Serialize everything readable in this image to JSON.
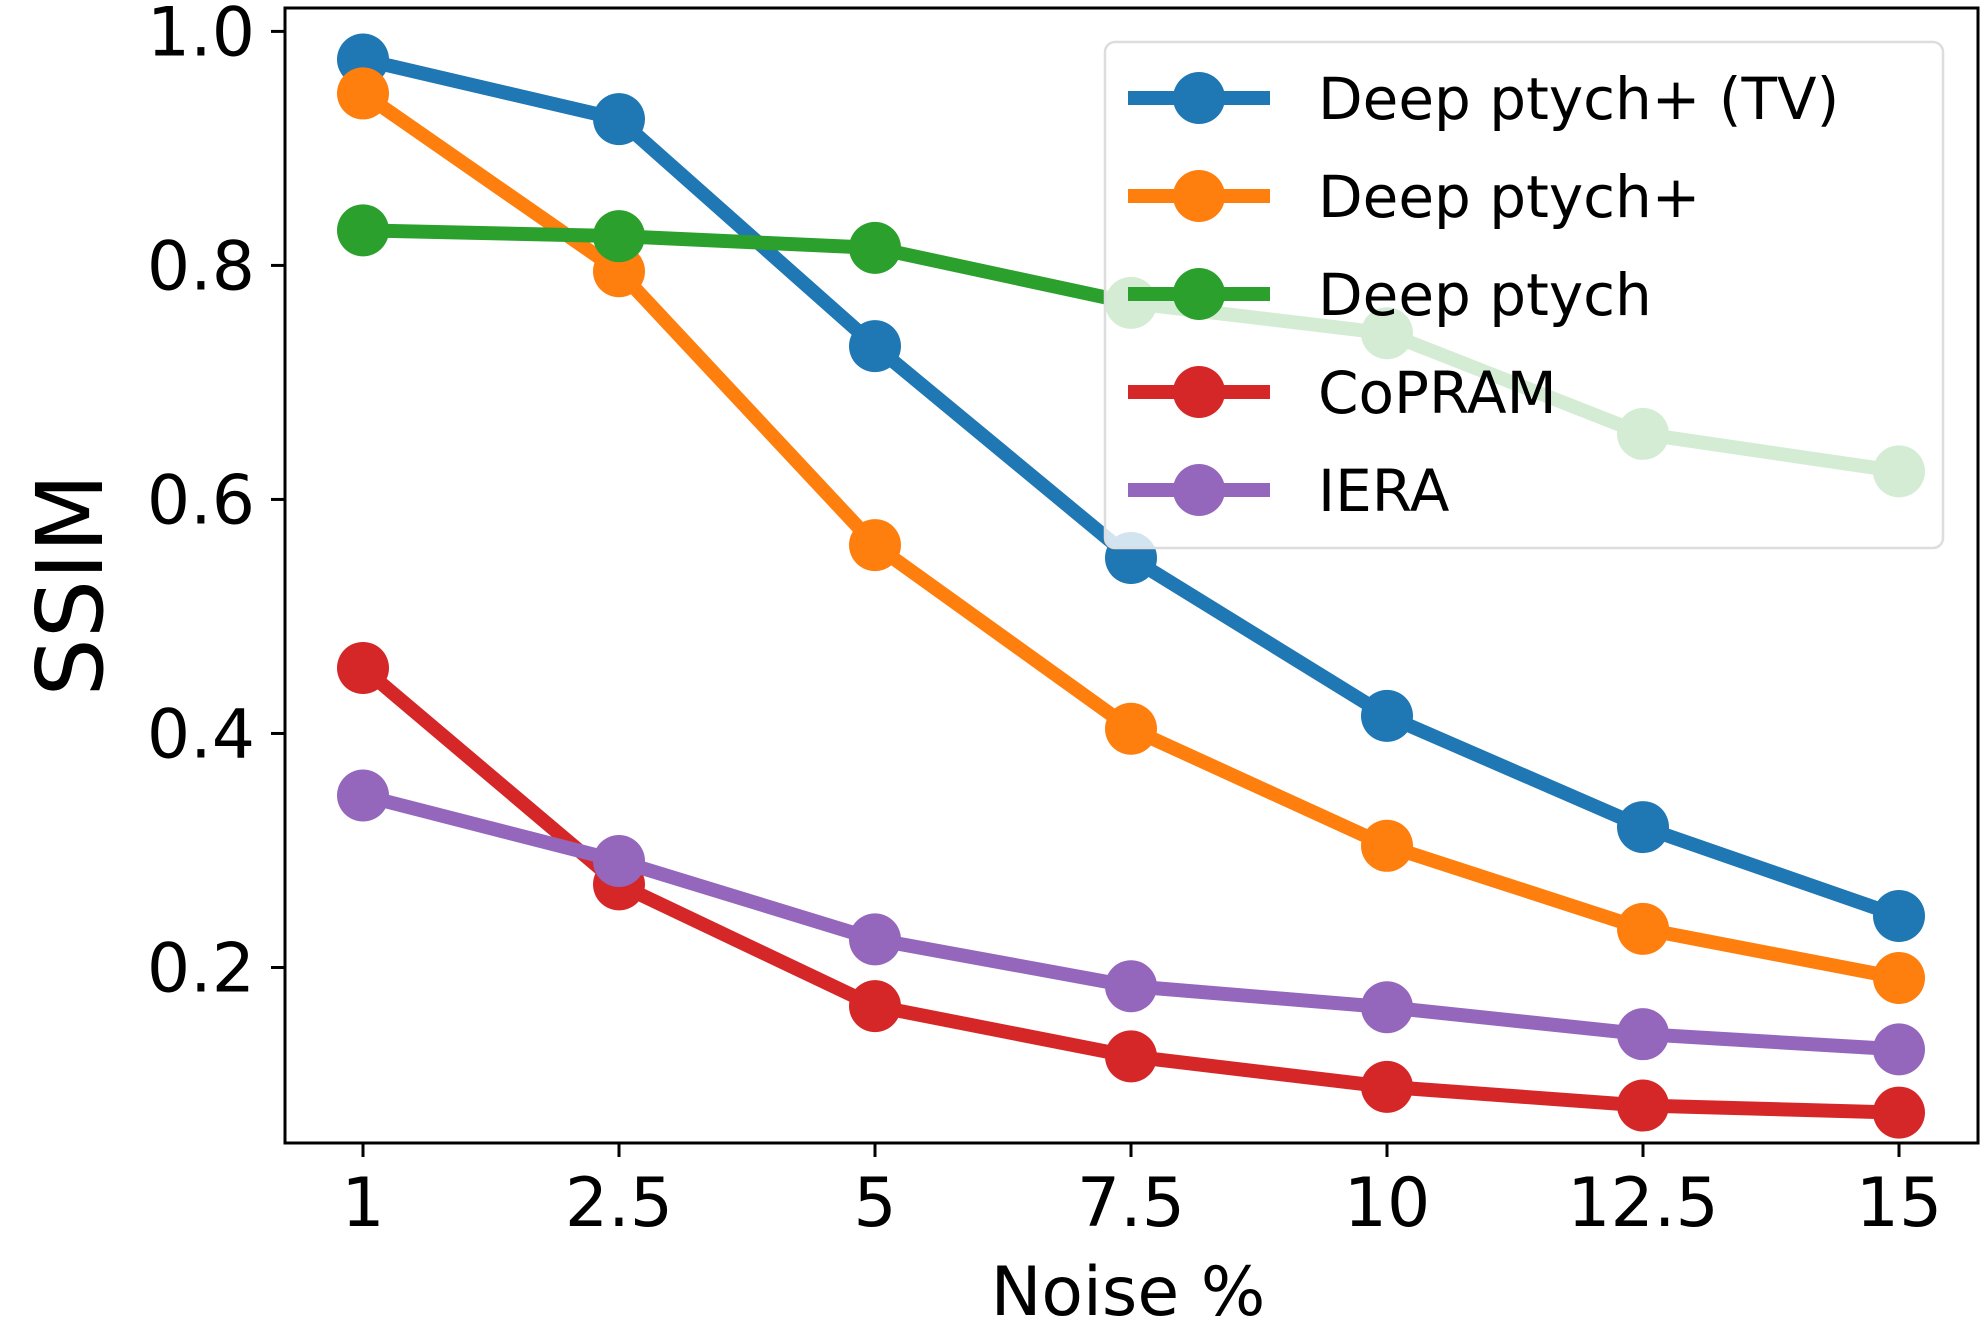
{
  "chart_data": {
    "type": "line",
    "title": "",
    "xlabel": "Noise %",
    "ylabel": "SSIM",
    "categories": [
      "1",
      "2.5",
      "5",
      "7.5",
      "10",
      "12.5",
      "15"
    ],
    "ylim": [
      0.05,
      1.02
    ],
    "yticks": [
      "0.2",
      "0.4",
      "0.6",
      "0.8",
      "1.0"
    ],
    "grid": false,
    "legend_position": "top-right",
    "series": [
      {
        "name": "Deep ptych+ (TV)",
        "color": "#1f77b4",
        "values": [
          0.976,
          0.925,
          0.731,
          0.55,
          0.415,
          0.32,
          0.244
        ]
      },
      {
        "name": "Deep ptych+",
        "color": "#ff7f0e",
        "values": [
          0.947,
          0.795,
          0.561,
          0.404,
          0.304,
          0.233,
          0.191
        ]
      },
      {
        "name": "Deep ptych",
        "color": "#2ca02c",
        "values": [
          0.83,
          0.825,
          0.815,
          0.768,
          0.742,
          0.656,
          0.624
        ]
      },
      {
        "name": "CoPRAM",
        "color": "#d62728",
        "values": [
          0.456,
          0.271,
          0.167,
          0.124,
          0.098,
          0.082,
          0.076
        ]
      },
      {
        "name": "IERA",
        "color": "#9467bd",
        "values": [
          0.347,
          0.291,
          0.224,
          0.184,
          0.166,
          0.143,
          0.13
        ]
      }
    ]
  }
}
